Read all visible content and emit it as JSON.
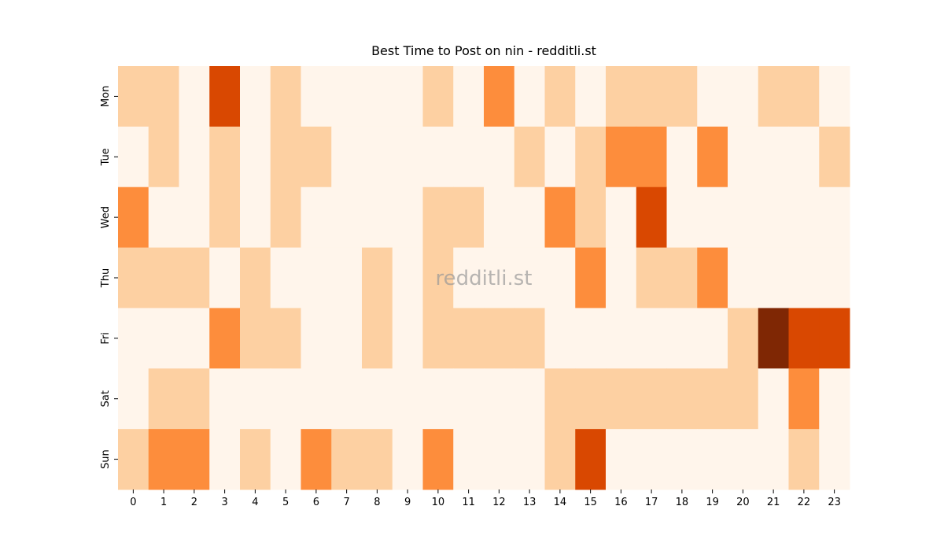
{
  "chart_data": {
    "type": "heatmap",
    "title": "Best Time to Post on nin - redditli.st",
    "watermark": "redditli.st",
    "x": [
      0,
      1,
      2,
      3,
      4,
      5,
      6,
      7,
      8,
      9,
      10,
      11,
      12,
      13,
      14,
      15,
      16,
      17,
      18,
      19,
      20,
      21,
      22,
      23
    ],
    "y": [
      "Mon",
      "Tue",
      "Wed",
      "Thu",
      "Fri",
      "Sat",
      "Sun"
    ],
    "values": [
      [
        1,
        1,
        0,
        3,
        0,
        1,
        0,
        0,
        0,
        0,
        1,
        0,
        2,
        0,
        1,
        0,
        1,
        1,
        1,
        0,
        0,
        1,
        1,
        0
      ],
      [
        0,
        1,
        0,
        1,
        0,
        1,
        1,
        0,
        0,
        0,
        0,
        0,
        0,
        1,
        0,
        1,
        2,
        2,
        0,
        2,
        0,
        0,
        0,
        1
      ],
      [
        2,
        0,
        0,
        1,
        0,
        1,
        0,
        0,
        0,
        0,
        1,
        1,
        0,
        0,
        2,
        1,
        0,
        3,
        0,
        0,
        0,
        0,
        0,
        0
      ],
      [
        1,
        1,
        1,
        0,
        1,
        0,
        0,
        0,
        1,
        0,
        1,
        0,
        0,
        0,
        0,
        2,
        0,
        1,
        1,
        2,
        0,
        0,
        0,
        0
      ],
      [
        0,
        0,
        0,
        2,
        1,
        1,
        0,
        0,
        1,
        0,
        1,
        1,
        1,
        1,
        0,
        0,
        0,
        0,
        0,
        0,
        1,
        4,
        3,
        3
      ],
      [
        0,
        1,
        1,
        0,
        0,
        0,
        0,
        0,
        0,
        0,
        0,
        0,
        0,
        0,
        1,
        1,
        1,
        1,
        1,
        1,
        1,
        0,
        2,
        0
      ],
      [
        1,
        2,
        2,
        0,
        1,
        0,
        2,
        1,
        1,
        0,
        2,
        0,
        0,
        0,
        1,
        3,
        0,
        0,
        0,
        0,
        0,
        0,
        1,
        0
      ]
    ],
    "colormap": [
      "#fff5eb",
      "#fdd0a2",
      "#fd8d3c",
      "#d94801",
      "#7f2704"
    ]
  }
}
